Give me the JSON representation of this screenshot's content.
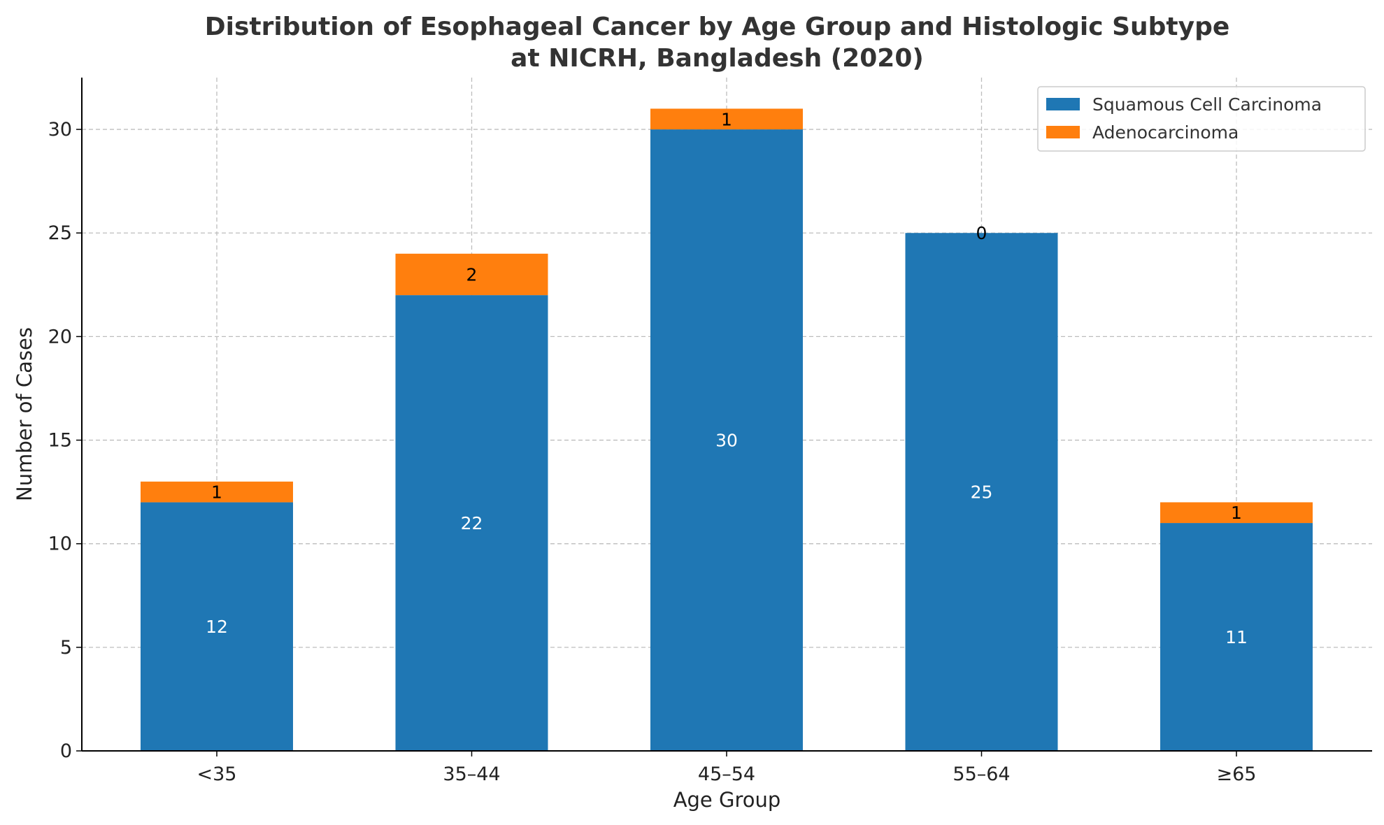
{
  "chart_data": {
    "type": "bar",
    "stacked": true,
    "title_lines": [
      "Distribution of Esophageal Cancer by Age Group and Histologic Subtype",
      "at NICRH, Bangladesh (2020)"
    ],
    "xlabel": "Age Group",
    "ylabel": "Number of Cases",
    "categories": [
      "<35",
      "35–44",
      "45–54",
      "55–64",
      "≥65"
    ],
    "series": [
      {
        "name": "Squamous Cell Carcinoma",
        "color": "#1f77b4",
        "label_color": "#ffffff",
        "values": [
          12,
          22,
          30,
          25,
          11
        ]
      },
      {
        "name": "Adenocarcinoma",
        "color": "#ff7f0e",
        "label_color": "#000000",
        "values": [
          1,
          2,
          1,
          0,
          1
        ]
      }
    ],
    "ylim": [
      0,
      32.5
    ],
    "yticks": [
      0,
      5,
      10,
      15,
      20,
      25,
      30
    ],
    "grid": true,
    "legend_position": "top-right"
  }
}
